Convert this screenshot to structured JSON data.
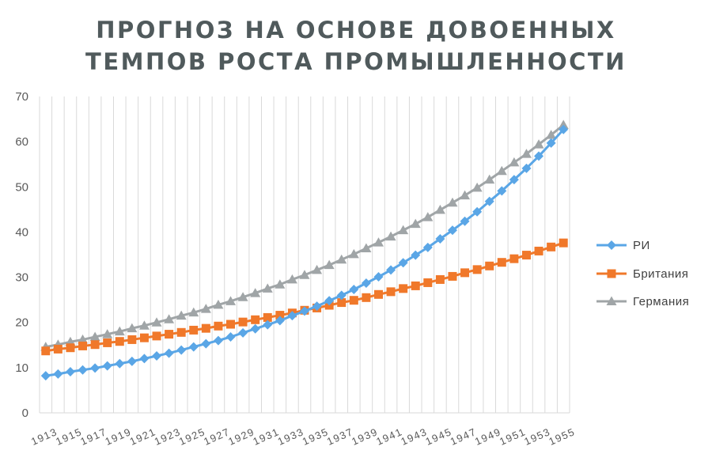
{
  "title": {
    "line1": "ПРОГНОЗ НА ОСНОВЕ ДОВОЕННЫХ",
    "line2": "ТЕМПОВ РОСТА ПРОМЫШЛЕННОСТИ"
  },
  "chart_data": {
    "type": "line",
    "title": "ПРОГНОЗ НА ОСНОВЕ ДОВОЕННЫХ ТЕМПОВ РОСТА ПРОМЫШЛЕННОСТИ",
    "xlabel": "",
    "ylabel": "",
    "ylim": [
      0,
      70
    ],
    "yticks": [
      0,
      10,
      20,
      30,
      40,
      50,
      60,
      70
    ],
    "x": [
      1913,
      1914,
      1915,
      1916,
      1917,
      1918,
      1919,
      1920,
      1921,
      1922,
      1923,
      1924,
      1925,
      1926,
      1927,
      1928,
      1929,
      1930,
      1931,
      1932,
      1933,
      1934,
      1935,
      1936,
      1937,
      1938,
      1939,
      1940,
      1941,
      1942,
      1943,
      1944,
      1945,
      1946,
      1947,
      1948,
      1949,
      1950,
      1951,
      1952,
      1953,
      1954,
      1955
    ],
    "xtick_labels": [
      "1913",
      "1915",
      "1917",
      "1919",
      "1921",
      "1923",
      "1925",
      "1927",
      "1929",
      "1931",
      "1933",
      "1935",
      "1937",
      "1939",
      "1941",
      "1943",
      "1945",
      "1947",
      "1949",
      "1951",
      "1953",
      "1955"
    ],
    "grid": "vertical",
    "legend_position": "right",
    "series": [
      {
        "name": "РИ",
        "color": "#5aa6e6",
        "marker": "diamond",
        "values": [
          8.2,
          8.6,
          9.1,
          9.5,
          9.9,
          10.4,
          10.9,
          11.4,
          12.0,
          12.6,
          13.2,
          13.9,
          14.6,
          15.3,
          16.0,
          16.8,
          17.7,
          18.6,
          19.5,
          20.4,
          21.5,
          22.5,
          23.6,
          24.8,
          26.0,
          27.3,
          28.7,
          30.1,
          31.6,
          33.2,
          34.9,
          36.6,
          38.5,
          40.4,
          42.4,
          44.5,
          46.8,
          49.1,
          51.6,
          54.1,
          56.8,
          59.7,
          62.7
        ]
      },
      {
        "name": "Британия",
        "color": "#f0782a",
        "marker": "square",
        "values": [
          13.7,
          14.1,
          14.4,
          14.8,
          15.1,
          15.5,
          15.8,
          16.2,
          16.6,
          17.0,
          17.4,
          17.8,
          18.3,
          18.7,
          19.2,
          19.6,
          20.1,
          20.6,
          21.1,
          21.6,
          22.1,
          22.7,
          23.2,
          23.8,
          24.4,
          24.9,
          25.5,
          26.2,
          26.8,
          27.5,
          28.1,
          28.8,
          29.5,
          30.2,
          31.0,
          31.7,
          32.5,
          33.3,
          34.1,
          34.9,
          35.8,
          36.7,
          37.6
        ]
      },
      {
        "name": "Германия",
        "color": "#a0a5a7",
        "marker": "triangle",
        "values": [
          14.6,
          15.1,
          15.7,
          16.2,
          16.8,
          17.4,
          18.0,
          18.7,
          19.3,
          20.0,
          20.7,
          21.5,
          22.2,
          23.0,
          23.9,
          24.7,
          25.6,
          26.5,
          27.5,
          28.4,
          29.5,
          30.5,
          31.6,
          32.7,
          33.9,
          35.1,
          36.4,
          37.7,
          39.0,
          40.4,
          41.8,
          43.3,
          44.9,
          46.5,
          48.1,
          49.8,
          51.6,
          53.5,
          55.4,
          57.3,
          59.4,
          61.5,
          63.7
        ]
      }
    ]
  }
}
